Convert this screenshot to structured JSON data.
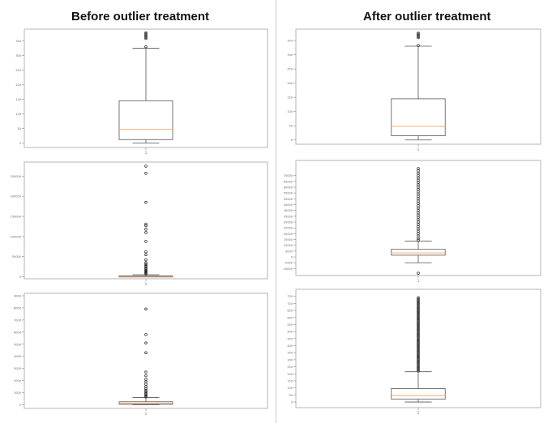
{
  "titles": {
    "before": "Before  outlier treatment",
    "after": "After outlier treatment"
  },
  "chart_data": [
    {
      "type": "box",
      "column": "before",
      "row": 1,
      "ylim": [
        -15,
        390
      ],
      "yticks": [
        "0",
        "50",
        "100",
        "150",
        "200",
        "250",
        "300",
        "350"
      ],
      "xtick": "1",
      "q1": 12,
      "median": 47,
      "q3": 145,
      "whisker_low": 0,
      "whisker_high": 325,
      "outliers": [
        330,
        358,
        362,
        366,
        370,
        374,
        378
      ]
    },
    {
      "type": "box",
      "column": "after",
      "row": 1,
      "ylim": [
        -15,
        390
      ],
      "yticks": [
        "0",
        "50",
        "100",
        "150",
        "200",
        "250",
        "300",
        "350"
      ],
      "xtick": "1",
      "q1": 15,
      "median": 48,
      "q3": 145,
      "whisker_low": 0,
      "whisker_high": 330,
      "outliers": [
        333,
        360,
        364,
        368,
        372,
        376
      ]
    },
    {
      "type": "box",
      "column": "before",
      "row": 2,
      "ylim": [
        -5000,
        285000
      ],
      "yticks": [
        "0",
        "50000",
        "100000",
        "150000",
        "200000",
        "250000"
      ],
      "xtick": "1",
      "q1": 0,
      "median": 500,
      "q3": 2500,
      "whisker_low": 0,
      "whisker_high": 5000,
      "outliers": [
        7000,
        9000,
        11000,
        13000,
        15000,
        17000,
        20000,
        22000,
        25000,
        28000,
        31000,
        35000,
        42000,
        55000,
        62000,
        88000,
        110000,
        118000,
        127000,
        131000,
        185000,
        257000,
        275000
      ]
    },
    {
      "type": "box",
      "column": "after",
      "row": 2,
      "ylim": [
        -16000,
        83000
      ],
      "yticks": [
        "-10000",
        "-5000",
        "0",
        "5000",
        "10000",
        "15000",
        "20000",
        "25000",
        "30000",
        "35000",
        "40000",
        "45000",
        "50000",
        "55000",
        "60000",
        "65000",
        "70000"
      ],
      "xtick": "1",
      "q1": 1500,
      "median": 3500,
      "q3": 6500,
      "whisker_low": -5000,
      "whisker_high": 13500,
      "outliers": [
        14500,
        16000,
        18000,
        20000,
        22000,
        24000,
        26000,
        28000,
        30000,
        32000,
        34000,
        36000,
        38000,
        40000,
        42000,
        44000,
        46000,
        48000,
        50000,
        52000,
        54000,
        56000,
        58000,
        60000,
        62000,
        64000,
        66000,
        68000,
        70000,
        72000,
        74000,
        76000,
        -14000
      ]
    },
    {
      "type": "box",
      "column": "before",
      "row": 3,
      "ylim": [
        -300,
        9200
      ],
      "yticks": [
        "0",
        "1000",
        "2000",
        "3000",
        "4000",
        "5000",
        "6000",
        "7000",
        "8000",
        "9000"
      ],
      "xtick": "1",
      "q1": 40,
      "median": 110,
      "q3": 250,
      "whisker_low": 0,
      "whisker_high": 600,
      "outliers": [
        650,
        720,
        800,
        900,
        1000,
        1100,
        1200,
        1350,
        1500,
        1700,
        1900,
        2100,
        2400,
        2700,
        4300,
        5100,
        5800,
        7900
      ]
    },
    {
      "type": "box",
      "column": "after",
      "row": 3,
      "ylim": [
        -40,
        800
      ],
      "yticks": [
        "0",
        "50",
        "100",
        "150",
        "200",
        "250",
        "300",
        "350",
        "400",
        "450",
        "500",
        "550",
        "600",
        "650",
        "700",
        "750"
      ],
      "xtick": "1",
      "q1": 20,
      "median": 45,
      "q3": 95,
      "whisker_low": 0,
      "whisker_high": 215,
      "outliers": [
        220,
        230,
        240,
        250,
        260,
        270,
        280,
        290,
        300,
        310,
        320,
        330,
        340,
        350,
        360,
        370,
        380,
        390,
        400,
        410,
        420,
        430,
        440,
        450,
        460,
        470,
        480,
        490,
        500,
        510,
        520,
        530,
        540,
        550,
        560,
        570,
        580,
        590,
        600,
        610,
        620,
        630,
        640,
        650,
        660,
        670,
        680,
        690,
        700,
        710,
        720,
        730,
        740
      ]
    }
  ],
  "colors": {
    "median": "#f0a060",
    "box": "#555555",
    "frame": "#b5b5b5",
    "outlier": "#222222"
  }
}
